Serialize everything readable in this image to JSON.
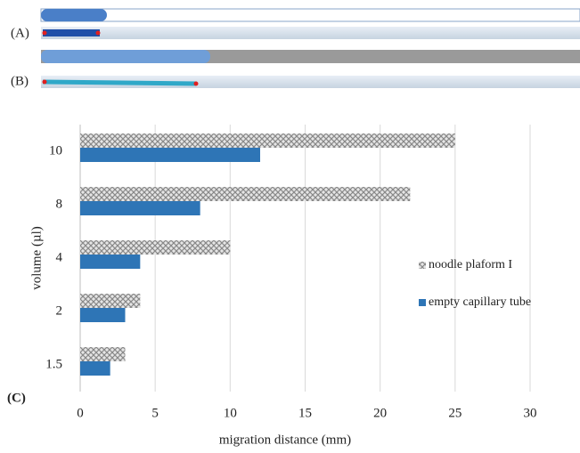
{
  "panel_labels": [
    "(A)",
    "(B)",
    "(C)"
  ],
  "chart_data": {
    "type": "hbar",
    "xlabel": "migration distance (mm)",
    "ylabel": "volume (µl)",
    "categories": [
      "1.5",
      "2",
      "4",
      "8",
      "10"
    ],
    "series": [
      {
        "name": "noodle plaform I",
        "color": "#a6a6a6",
        "pattern": "crosshatch",
        "values": [
          3,
          4,
          10,
          22,
          25
        ]
      },
      {
        "name": "empty capillary tube",
        "color": "#2e75b6",
        "values": [
          2,
          3,
          4,
          8,
          12
        ]
      }
    ],
    "xlim": [
      0,
      30
    ],
    "xticks": [
      0,
      5,
      10,
      15,
      20,
      25,
      30
    ],
    "grid": true,
    "legend": "right"
  }
}
